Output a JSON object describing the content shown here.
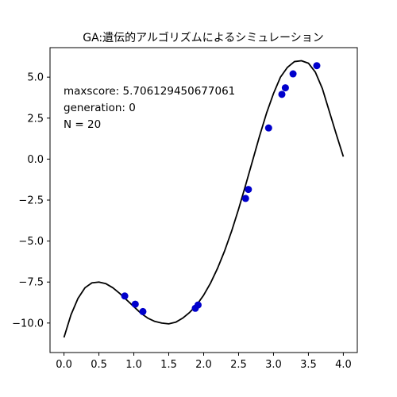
{
  "chart_data": {
    "type": "line",
    "title": "GA:遺伝的アルゴリズムによるシミュレーション",
    "xlabel": "",
    "ylabel": "",
    "xlim": [
      -0.2,
      4.2
    ],
    "ylim": [
      -11.8,
      6.8
    ],
    "xticks": [
      0.0,
      0.5,
      1.0,
      1.5,
      2.0,
      2.5,
      3.0,
      3.5,
      4.0
    ],
    "xtick_labels": [
      "0.0",
      "0.5",
      "1.0",
      "1.5",
      "2.0",
      "2.5",
      "3.0",
      "3.5",
      "4.0"
    ],
    "yticks": [
      5.0,
      2.5,
      0.0,
      -2.5,
      -5.0,
      -7.5,
      -10.0
    ],
    "ytick_labels": [
      "5.0",
      "2.5",
      "0.0",
      "−2.5",
      "−5.0",
      "−7.5",
      "−10.0"
    ],
    "grid": false,
    "curve": {
      "color": "#000000",
      "x": [
        0.0,
        0.1,
        0.2,
        0.3,
        0.4,
        0.5,
        0.6,
        0.7,
        0.8,
        0.9,
        1.0,
        1.1,
        1.2,
        1.3,
        1.4,
        1.5,
        1.6,
        1.7,
        1.8,
        1.9,
        2.0,
        2.1,
        2.2,
        2.3,
        2.4,
        2.5,
        2.6,
        2.7,
        2.8,
        2.9,
        3.0,
        3.1,
        3.2,
        3.3,
        3.4,
        3.5,
        3.6,
        3.7,
        3.8,
        3.9,
        4.0
      ],
      "y": [
        -10.88,
        -9.5,
        -8.5,
        -7.85,
        -7.55,
        -7.5,
        -7.6,
        -7.85,
        -8.2,
        -8.6,
        -9.0,
        -9.4,
        -9.7,
        -9.9,
        -10.0,
        -10.05,
        -9.95,
        -9.7,
        -9.35,
        -8.9,
        -8.3,
        -7.55,
        -6.65,
        -5.6,
        -4.4,
        -3.05,
        -1.6,
        -0.1,
        1.4,
        2.8,
        4.0,
        5.0,
        5.6,
        5.95,
        6.0,
        5.85,
        5.3,
        4.3,
        2.9,
        1.5,
        0.15
      ]
    },
    "points": {
      "color": "#0000cc",
      "x": [
        0.87,
        1.02,
        1.13,
        1.88,
        1.92,
        2.6,
        2.64,
        2.93,
        3.12,
        3.17,
        3.28,
        3.62
      ],
      "y": [
        -8.35,
        -8.85,
        -9.3,
        -9.1,
        -8.9,
        -2.4,
        -1.85,
        1.9,
        3.95,
        4.35,
        5.2,
        5.7
      ]
    },
    "annotations": [
      "maxscore: 5.706129450677061",
      "generation: 0",
      "N = 20"
    ]
  }
}
